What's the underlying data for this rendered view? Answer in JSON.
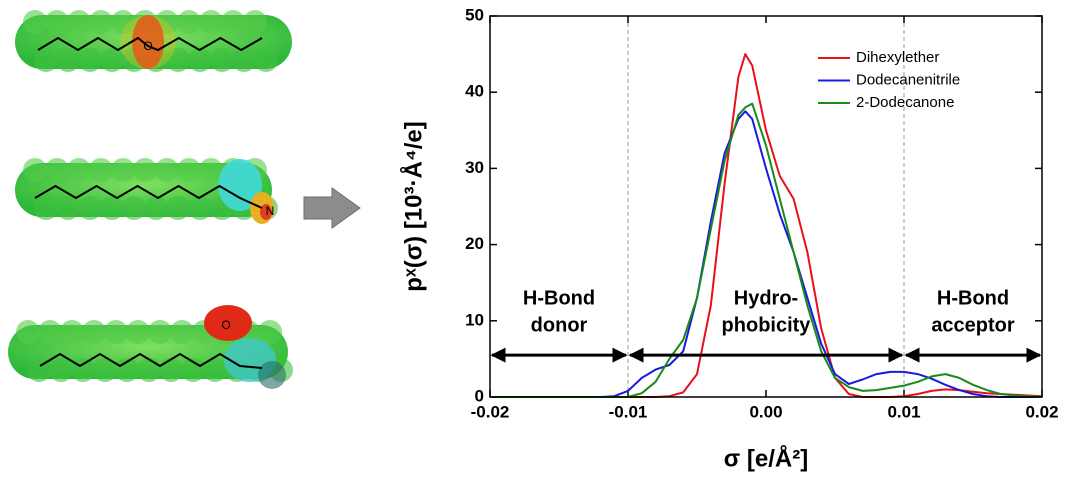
{
  "molecule_atoms": [
    "O",
    "N",
    "O"
  ],
  "chart_data": {
    "type": "line",
    "xlabel": "σ [e/Å²]",
    "ylabel": "pˣ(σ) [10³·Å⁴/e]",
    "x": [
      -0.02,
      -0.019,
      -0.018,
      -0.017,
      -0.016,
      -0.015,
      -0.014,
      -0.013,
      -0.012,
      -0.011,
      -0.01,
      -0.009,
      -0.008,
      -0.007,
      -0.006,
      -0.005,
      -0.004,
      -0.003,
      -0.002,
      -0.0015,
      -0.001,
      0,
      0.001,
      0.002,
      0.003,
      0.004,
      0.005,
      0.006,
      0.007,
      0.008,
      0.009,
      0.01,
      0.011,
      0.012,
      0.013,
      0.014,
      0.015,
      0.016,
      0.017,
      0.018,
      0.019,
      0.02
    ],
    "series": [
      {
        "name": "Dihexylether",
        "color": "#e8101a",
        "values": [
          0,
          0,
          0,
          0,
          0,
          0,
          0,
          0,
          0,
          0,
          0,
          0,
          0,
          0.1,
          0.6,
          3,
          12,
          28,
          42,
          45,
          43.5,
          35,
          29,
          26,
          19,
          9,
          2.5,
          0.4,
          0,
          0,
          0,
          0.1,
          0.4,
          0.8,
          1,
          0.9,
          0.7,
          0.5,
          0.4,
          0.3,
          0.2,
          0.1
        ]
      },
      {
        "name": "Dodecanenitrile",
        "color": "#1a1ae0",
        "values": [
          0,
          0,
          0,
          0,
          0,
          0,
          0,
          0,
          0,
          0.1,
          0.8,
          2.5,
          3.6,
          4.2,
          6,
          13,
          23,
          32,
          36.5,
          37.5,
          36.5,
          30,
          24,
          19,
          13,
          7,
          3,
          1.7,
          2.3,
          3,
          3.3,
          3.3,
          3,
          2.4,
          1.6,
          0.9,
          0.4,
          0.1,
          0,
          0,
          0,
          0
        ]
      },
      {
        "name": "2-Dodecanone",
        "color": "#1a8a1a",
        "values": [
          0,
          0,
          0,
          0,
          0,
          0,
          0,
          0,
          0,
          0,
          0,
          0.5,
          2,
          5,
          7.5,
          13,
          22,
          31,
          37,
          38,
          38.5,
          33,
          26,
          19,
          12,
          6,
          2.5,
          1.3,
          0.8,
          0.9,
          1.2,
          1.5,
          2,
          2.7,
          3,
          2.5,
          1.6,
          0.9,
          0.4,
          0.2,
          0.1,
          0
        ]
      }
    ],
    "xlim": [
      -0.02,
      0.02
    ],
    "ylim": [
      0,
      50
    ],
    "xticks": [
      -0.02,
      -0.01,
      {
        "value": 0,
        "label": "0.00"
      },
      0.01,
      0.02
    ],
    "yticks": [
      0,
      10,
      20,
      30,
      40,
      50
    ],
    "legend": "upper right",
    "vlines": [
      -0.01,
      0.01
    ],
    "arrow_y": 5.5,
    "regions": [
      {
        "lines": [
          "H-Bond",
          "donor"
        ],
        "xlim": [
          -0.02,
          -0.01
        ]
      },
      {
        "lines": [
          "Hydro-",
          "phobicity"
        ],
        "xlim": [
          -0.01,
          0.01
        ]
      },
      {
        "lines": [
          "H-Bond",
          "acceptor"
        ],
        "xlim": [
          0.01,
          0.02
        ]
      }
    ]
  }
}
